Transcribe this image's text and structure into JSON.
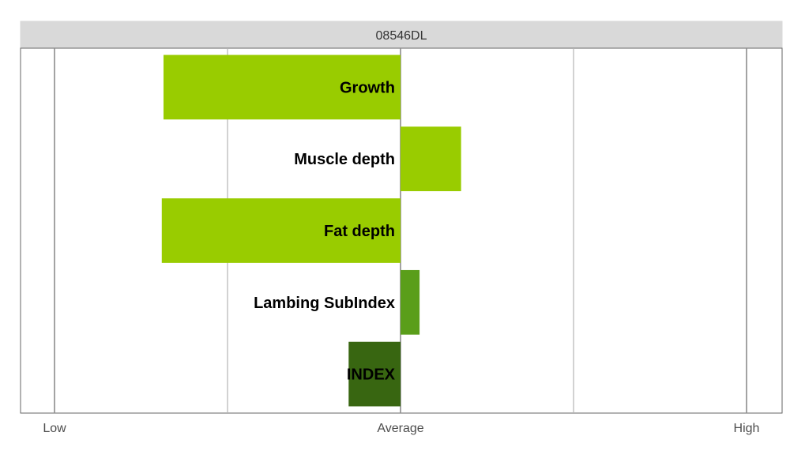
{
  "chart_data": {
    "type": "bar",
    "orientation": "horizontal",
    "title": "08546DL",
    "categories": [
      "Growth",
      "Muscle depth",
      "Fat depth",
      "Lambing SubIndex",
      "INDEX"
    ],
    "values": [
      -1.37,
      0.35,
      -1.38,
      0.11,
      -0.3
    ],
    "bar_colors": [
      "#99cc00",
      "#99cc00",
      "#99cc00",
      "#5a9e1a",
      "#386611"
    ],
    "xlim": [
      -2,
      2
    ],
    "x_ticks": [
      {
        "value": -2,
        "label": "Low"
      },
      {
        "value": 0,
        "label": "Average"
      },
      {
        "value": 2,
        "label": "High"
      }
    ],
    "minor_gridlines": [
      -1,
      1
    ],
    "grid": true,
    "legend": "none"
  }
}
